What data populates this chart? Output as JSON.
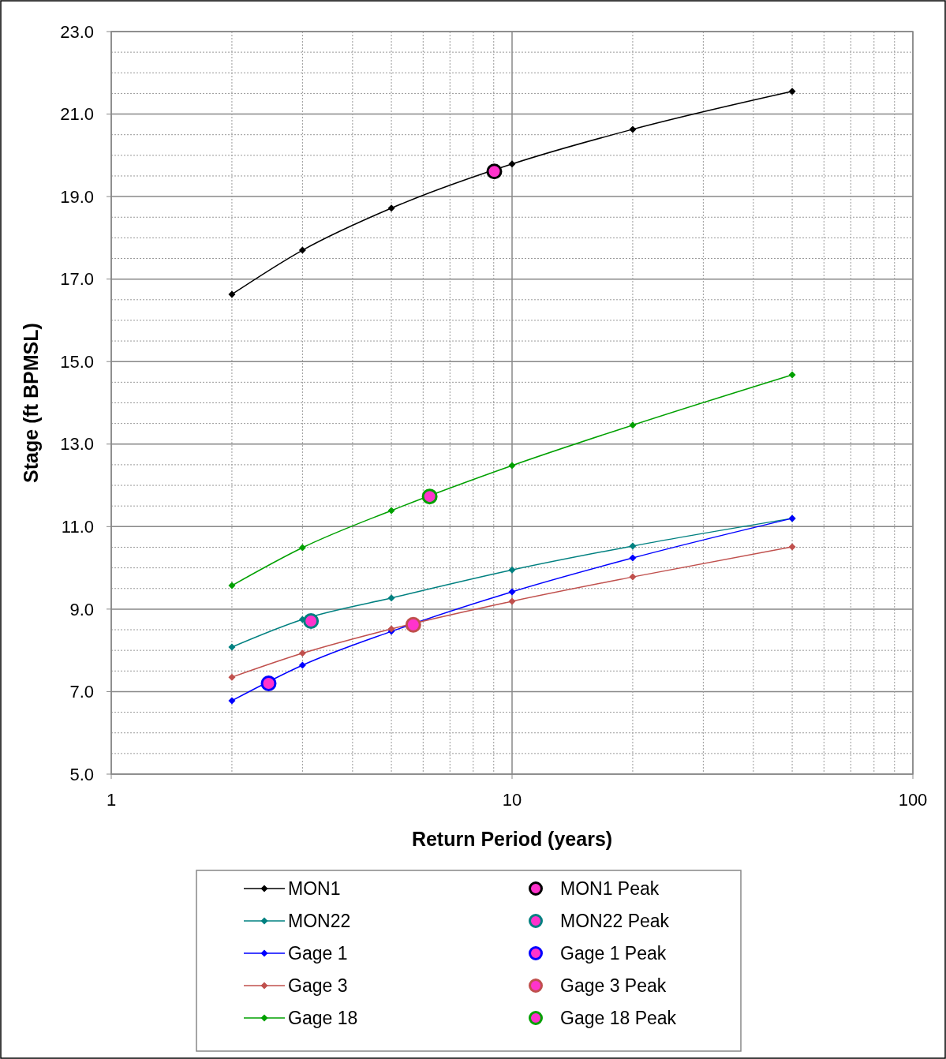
{
  "chart_data": {
    "type": "line",
    "xlabel": "Return Period (years)",
    "ylabel": "Stage (ft BPMSL)",
    "log": "x",
    "grid": true,
    "legend": "bottom",
    "line_style": "solid",
    "xlim": [
      1,
      100
    ],
    "ylim": [
      5,
      23
    ],
    "xticks": [
      1,
      {
        "value": 2,
        "label": null
      },
      {
        "value": 3,
        "label": null
      },
      {
        "value": 4,
        "label": null
      },
      {
        "value": 5,
        "label": null
      },
      {
        "value": 6,
        "label": null
      },
      {
        "value": 7,
        "label": null
      },
      {
        "value": 8,
        "label": null
      },
      {
        "value": 9,
        "label": null
      },
      10,
      {
        "value": 20,
        "label": null
      },
      {
        "value": 30,
        "label": null
      },
      {
        "value": 40,
        "label": null
      },
      {
        "value": 50,
        "label": null
      },
      {
        "value": 60,
        "label": null
      },
      {
        "value": 70,
        "label": null
      },
      {
        "value": 80,
        "label": null
      },
      {
        "value": 90,
        "label": null
      },
      100
    ],
    "yticks": [
      {
        "value": 5,
        "label": "5.0"
      },
      {
        "value": 5.5,
        "label": null
      },
      {
        "value": 6,
        "label": null
      },
      {
        "value": 6.5,
        "label": null
      },
      {
        "value": 7,
        "label": "7.0"
      },
      {
        "value": 7.5,
        "label": null
      },
      {
        "value": 8,
        "label": null
      },
      {
        "value": 8.5,
        "label": null
      },
      {
        "value": 9,
        "label": "9.0"
      },
      {
        "value": 9.5,
        "label": null
      },
      {
        "value": 10,
        "label": null
      },
      {
        "value": 10.5,
        "label": null
      },
      {
        "value": 11,
        "label": "11.0"
      },
      {
        "value": 11.5,
        "label": null
      },
      {
        "value": 12,
        "label": null
      },
      {
        "value": 12.5,
        "label": null
      },
      {
        "value": 13,
        "label": "13.0"
      },
      {
        "value": 13.5,
        "label": null
      },
      {
        "value": 14,
        "label": null
      },
      {
        "value": 14.5,
        "label": null
      },
      {
        "value": 15,
        "label": "15.0"
      },
      {
        "value": 15.5,
        "label": null
      },
      {
        "value": 16,
        "label": null
      },
      {
        "value": 16.5,
        "label": null
      },
      {
        "value": 17,
        "label": "17.0"
      },
      {
        "value": 17.5,
        "label": null
      },
      {
        "value": 18,
        "label": null
      },
      {
        "value": 18.5,
        "label": null
      },
      {
        "value": 19,
        "label": "19.0"
      },
      {
        "value": 19.5,
        "label": null
      },
      {
        "value": 20,
        "label": null
      },
      {
        "value": 20.5,
        "label": null
      },
      {
        "value": 21,
        "label": "21.0"
      },
      {
        "value": 21.5,
        "label": null
      },
      {
        "value": 22,
        "label": null
      },
      {
        "value": 22.5,
        "label": null
      },
      {
        "value": 23,
        "label": "23.0"
      }
    ],
    "series": [
      {
        "name": "MON1",
        "marker": "diamond",
        "color": "#000000",
        "x": [
          2,
          3,
          5,
          10,
          20,
          50
        ],
        "values": [
          16.63,
          17.7,
          18.72,
          19.79,
          20.63,
          21.55
        ]
      },
      {
        "name": "MON22",
        "marker": "diamond",
        "color": "#008080",
        "x": [
          2,
          3,
          5,
          10,
          20,
          50
        ],
        "values": [
          8.08,
          8.75,
          9.27,
          9.95,
          10.53,
          11.2
        ]
      },
      {
        "name": "Gage 1",
        "marker": "diamond",
        "color": "#0000ff",
        "x": [
          2,
          3,
          5,
          10,
          20,
          50
        ],
        "values": [
          6.78,
          7.64,
          8.46,
          9.42,
          10.24,
          11.2
        ]
      },
      {
        "name": "Gage 3",
        "marker": "diamond",
        "color": "#c0504d",
        "x": [
          2,
          3,
          5,
          10,
          20,
          50
        ],
        "values": [
          7.35,
          7.93,
          8.52,
          9.19,
          9.78,
          10.51
        ]
      },
      {
        "name": "Gage 18",
        "marker": "diamond",
        "color": "#00a000",
        "x": [
          2,
          3,
          5,
          10,
          20,
          50
        ],
        "values": [
          9.57,
          10.49,
          11.39,
          12.48,
          13.46,
          14.68
        ]
      },
      {
        "name": "MON1 Peak",
        "type": "scatter",
        "marker": "circle",
        "color": "#000000",
        "x": [
          9.03
        ],
        "values": [
          19.61
        ]
      },
      {
        "name": "MON22 Peak",
        "type": "scatter",
        "marker": "circle",
        "color": "#008080",
        "x": [
          3.15
        ],
        "values": [
          8.71
        ]
      },
      {
        "name": "Gage 1 Peak",
        "type": "scatter",
        "marker": "circle",
        "color": "#0000ff",
        "x": [
          2.47
        ],
        "values": [
          7.2
        ]
      },
      {
        "name": "Gage 3 Peak",
        "type": "scatter",
        "marker": "circle",
        "color": "#c0504d",
        "x": [
          5.67
        ],
        "values": [
          8.62
        ]
      },
      {
        "name": "Gage 18 Peak",
        "type": "scatter",
        "marker": "circle",
        "color": "#00a000",
        "x": [
          6.23
        ],
        "values": [
          11.73
        ]
      }
    ]
  }
}
